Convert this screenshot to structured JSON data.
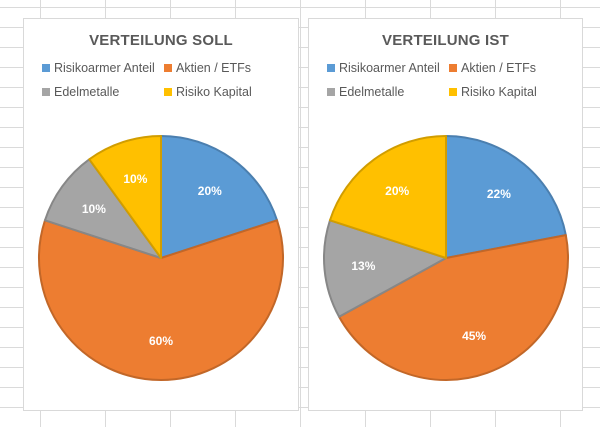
{
  "chart_data": [
    {
      "type": "pie",
      "title": "VERTEILUNG SOLL",
      "categories": [
        "Risikoarmer Anteil",
        "Aktien / ETFs",
        "Edelmetalle",
        "Risiko Kapital"
      ],
      "values": [
        20,
        60,
        10,
        10
      ],
      "labels": [
        "20%",
        "60%",
        "10%",
        "10%"
      ],
      "colors": [
        "#5b9bd5",
        "#ed7d31",
        "#a5a5a5",
        "#ffc000"
      ],
      "legend_position": "top"
    },
    {
      "type": "pie",
      "title": "VERTEILUNG IST",
      "categories": [
        "Risikoarmer Anteil",
        "Aktien / ETFs",
        "Edelmetalle",
        "Risiko Kapital"
      ],
      "values": [
        22,
        45,
        13,
        20
      ],
      "labels": [
        "22%",
        "45%",
        "13%",
        "20%"
      ],
      "colors": [
        "#5b9bd5",
        "#ed7d31",
        "#a5a5a5",
        "#ffc000"
      ],
      "legend_position": "top"
    }
  ]
}
